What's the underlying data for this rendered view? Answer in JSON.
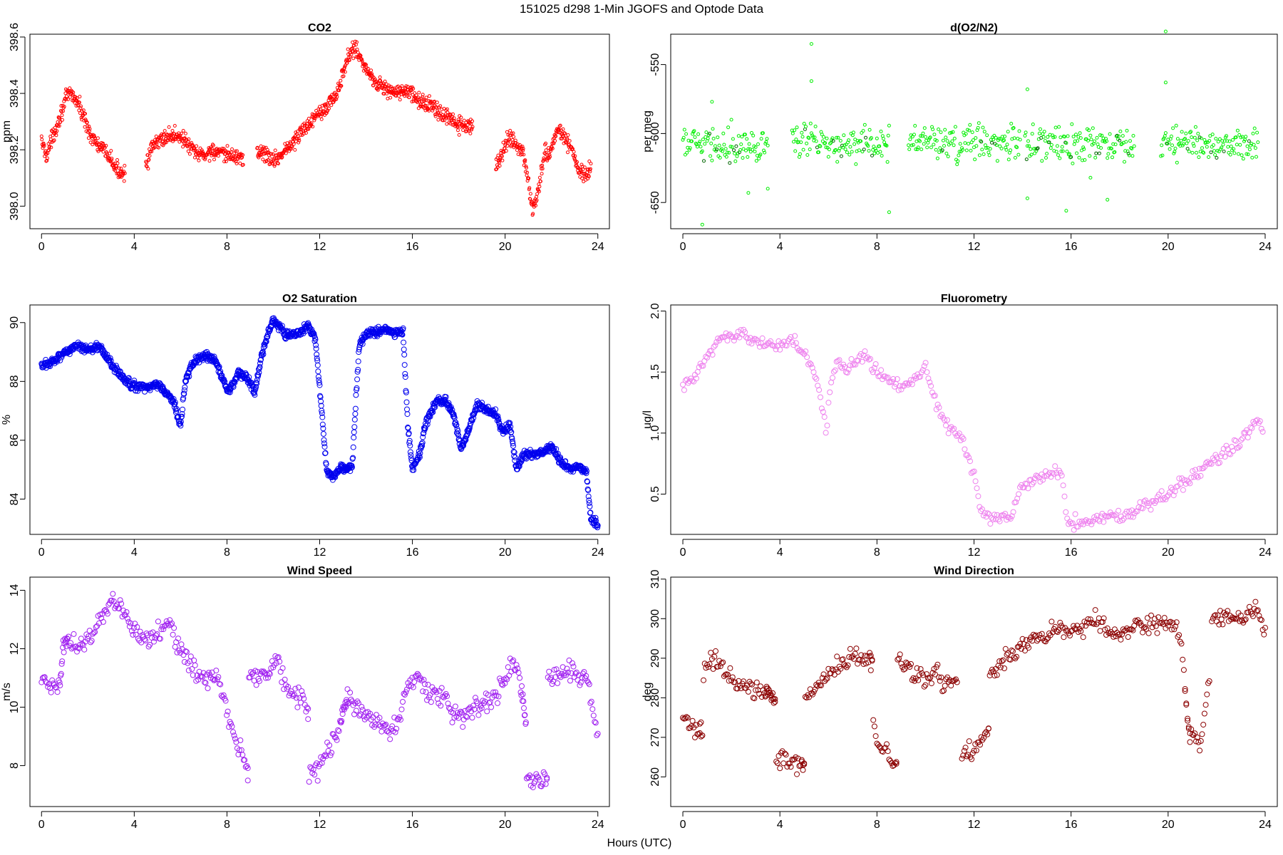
{
  "figure": {
    "title": "151025   d298   1-Min  JGOFS and Optode Data",
    "xlabel": "Hours (UTC)"
  },
  "chart_data": [
    {
      "id": "co2",
      "type": "scatter",
      "title": "CO2",
      "ylabel": "ppm",
      "color": "#ff0000",
      "xlim": [
        -0.5,
        24.5
      ],
      "ylim": [
        397.92,
        398.61
      ],
      "xticks": [
        0,
        4,
        8,
        12,
        16,
        20,
        24
      ],
      "yticks": [
        398.0,
        398.2,
        398.4,
        398.6
      ],
      "ytick_labels": [
        "398.0",
        "398.2",
        "398.4",
        "398.6"
      ],
      "marker_size": 2,
      "noise": 0.02,
      "density": 60,
      "segments": [
        0,
        3.6,
        4.5,
        8.7,
        9.3,
        18.6,
        19.6,
        23.7
      ],
      "x": [
        0,
        0.2,
        0.5,
        0.8,
        1.1,
        1.3,
        1.6,
        1.9,
        2.2,
        2.5,
        2.9,
        3.2,
        3.5,
        3.6,
        4.5,
        4.8,
        5.2,
        5.6,
        6.0,
        6.3,
        6.6,
        7.0,
        7.4,
        7.8,
        8.2,
        8.7,
        9.3,
        9.6,
        10.0,
        10.4,
        10.8,
        11.2,
        11.6,
        12.0,
        12.4,
        12.8,
        13.2,
        13.5,
        13.9,
        14.3,
        14.8,
        15.3,
        15.8,
        16.3,
        16.8,
        17.3,
        17.8,
        18.2,
        18.6,
        19.6,
        19.9,
        20.2,
        20.5,
        20.8,
        21.0,
        21.2,
        21.4,
        21.7,
        22.0,
        22.3,
        22.6,
        22.9,
        23.2,
        23.5,
        23.7
      ],
      "y": [
        398.23,
        398.18,
        398.25,
        398.32,
        398.39,
        398.4,
        398.36,
        398.3,
        398.24,
        398.21,
        398.18,
        398.13,
        398.12,
        398.13,
        398.15,
        398.21,
        398.24,
        398.25,
        398.25,
        398.22,
        398.19,
        398.18,
        398.2,
        398.18,
        398.18,
        398.17,
        398.19,
        398.19,
        398.16,
        398.19,
        398.22,
        398.26,
        398.3,
        398.34,
        398.36,
        398.41,
        398.52,
        398.57,
        398.5,
        398.45,
        398.42,
        398.4,
        398.41,
        398.37,
        398.36,
        398.32,
        398.3,
        398.28,
        398.28,
        398.15,
        398.19,
        398.25,
        398.22,
        398.18,
        398.08,
        397.98,
        398.05,
        398.18,
        398.2,
        398.28,
        398.24,
        398.2,
        398.12,
        398.1,
        398.14
      ]
    },
    {
      "id": "o2n2",
      "type": "scatter",
      "title": "d(O2/N2)",
      "ylabel": "per meg",
      "color": "#00ee00",
      "color2": "#006600",
      "xlim": [
        -0.5,
        24.5
      ],
      "ylim": [
        -669,
        -528
      ],
      "xticks": [
        0,
        4,
        8,
        12,
        16,
        20,
        24
      ],
      "yticks": [
        -550,
        -600,
        -650
      ],
      "ytick_labels": [
        "-550",
        "-600",
        "-650"
      ],
      "marker_size": 2,
      "noise": 9,
      "density": 30,
      "segments": [
        0,
        3.5,
        4.5,
        8.5,
        9.3,
        13.9,
        14.1,
        18.6,
        19.7,
        23.7
      ],
      "x": [
        0,
        23.7
      ],
      "y": [
        -607,
        -607
      ],
      "outliers": [
        [
          0.8,
          -666
        ],
        [
          1.2,
          -577
        ],
        [
          2.7,
          -643
        ],
        [
          3.5,
          -640
        ],
        [
          5.3,
          -535
        ],
        [
          5.3,
          -562
        ],
        [
          8.5,
          -657
        ],
        [
          14.2,
          -568
        ],
        [
          14.2,
          -647
        ],
        [
          15.8,
          -656
        ],
        [
          16.8,
          -632
        ],
        [
          17.5,
          -648
        ],
        [
          19.9,
          -526
        ],
        [
          19.9,
          -563
        ]
      ]
    },
    {
      "id": "o2sat",
      "type": "scatter",
      "title": "O2 Saturation",
      "ylabel": "%",
      "color": "#0000ee",
      "xlim": [
        -0.5,
        24.5
      ],
      "ylim": [
        82.8,
        90.6
      ],
      "xticks": [
        0,
        4,
        8,
        12,
        16,
        20,
        24
      ],
      "yticks": [
        84,
        86,
        88,
        90
      ],
      "ytick_labels": [
        "84",
        "86",
        "88",
        "90"
      ],
      "marker_size": 3.5,
      "noise": 0.1,
      "density": 60,
      "segments": [
        0,
        24
      ],
      "x": [
        0,
        0.5,
        1.0,
        1.5,
        2.0,
        2.5,
        3.0,
        3.4,
        3.8,
        4.2,
        4.6,
        5.0,
        5.4,
        5.7,
        6.0,
        6.2,
        6.5,
        7.0,
        7.5,
        8.0,
        8.2,
        8.5,
        8.9,
        9.2,
        9.5,
        9.8,
        10.0,
        10.2,
        10.5,
        11.0,
        11.5,
        11.8,
        12.0,
        12.3,
        12.6,
        12.9,
        13.1,
        13.4,
        13.7,
        14.0,
        14.5,
        14.9,
        15.3,
        15.6,
        15.8,
        16.0,
        16.3,
        16.6,
        17.0,
        17.4,
        17.8,
        18.1,
        18.4,
        18.8,
        19.2,
        19.6,
        19.9,
        20.2,
        20.5,
        20.8,
        21.2,
        21.6,
        22.0,
        22.4,
        22.8,
        23.2,
        23.5,
        23.7,
        24.0
      ],
      "y": [
        88.5,
        88.7,
        89.0,
        89.2,
        89.1,
        89.2,
        88.6,
        88.2,
        87.9,
        87.8,
        87.8,
        87.9,
        87.6,
        87.3,
        86.5,
        88.0,
        88.6,
        88.9,
        88.7,
        87.7,
        87.8,
        88.3,
        88.1,
        87.6,
        88.9,
        89.7,
        90.1,
        89.9,
        89.6,
        89.6,
        89.9,
        89.5,
        87.8,
        85.0,
        84.7,
        85.1,
        85.0,
        85.1,
        89.2,
        89.6,
        89.7,
        89.8,
        89.6,
        89.7,
        86.5,
        85.0,
        85.5,
        86.6,
        87.3,
        87.4,
        86.8,
        85.7,
        86.3,
        87.2,
        87.0,
        86.9,
        86.3,
        86.5,
        85.0,
        85.5,
        85.5,
        85.6,
        85.8,
        85.3,
        85.0,
        85.1,
        84.9,
        83.4,
        83.1
      ]
    },
    {
      "id": "fluoro",
      "type": "scatter",
      "title": "Fluorometry",
      "ylabel": "ug/l",
      "color": "#ee82ee",
      "xlim": [
        -0.5,
        24.5
      ],
      "ylim": [
        0.17,
        2.05
      ],
      "xticks": [
        0,
        4,
        8,
        12,
        16,
        20,
        24
      ],
      "yticks": [
        0.5,
        1.0,
        1.5,
        2.0
      ],
      "ytick_labels": [
        "0.5",
        "1.0",
        "1.5",
        "2.0"
      ],
      "marker_size": 3.5,
      "noise": 0.04,
      "density": 18,
      "segments": [
        0,
        23.9
      ],
      "x": [
        0,
        0.5,
        1.0,
        1.5,
        2.0,
        2.5,
        3.0,
        3.5,
        4.0,
        4.5,
        5.0,
        5.3,
        5.6,
        5.9,
        6.1,
        6.4,
        6.7,
        7.0,
        7.5,
        8.0,
        8.5,
        9.0,
        9.5,
        10.0,
        10.5,
        11.0,
        11.5,
        12.0,
        12.3,
        12.6,
        13.0,
        13.5,
        13.9,
        14.3,
        14.8,
        15.3,
        15.6,
        15.9,
        16.3,
        16.8,
        17.3,
        17.8,
        18.2,
        18.6,
        19.0,
        19.5,
        20.0,
        20.5,
        21.0,
        21.5,
        22.0,
        22.5,
        23.0,
        23.4,
        23.7,
        23.9
      ],
      "y": [
        1.38,
        1.45,
        1.62,
        1.8,
        1.78,
        1.82,
        1.75,
        1.72,
        1.74,
        1.76,
        1.65,
        1.55,
        1.35,
        1.0,
        1.4,
        1.6,
        1.5,
        1.6,
        1.65,
        1.5,
        1.45,
        1.38,
        1.45,
        1.55,
        1.2,
        1.05,
        0.95,
        0.65,
        0.35,
        0.3,
        0.3,
        0.28,
        0.55,
        0.6,
        0.63,
        0.68,
        0.65,
        0.25,
        0.28,
        0.3,
        0.32,
        0.3,
        0.32,
        0.38,
        0.42,
        0.45,
        0.5,
        0.58,
        0.64,
        0.72,
        0.8,
        0.85,
        0.95,
        1.05,
        1.12,
        1.0
      ]
    },
    {
      "id": "windspeed",
      "type": "scatter",
      "title": "Wind Speed",
      "ylabel": "m/s",
      "color": "#a020f0",
      "xlim": [
        -0.5,
        24.5
      ],
      "ylim": [
        6.6,
        14.45
      ],
      "xticks": [
        0,
        4,
        8,
        12,
        16,
        20,
        24
      ],
      "yticks": [
        8,
        10,
        12,
        14
      ],
      "ytick_labels": [
        "8",
        "10",
        "12",
        "14"
      ],
      "marker_size": 3.5,
      "noise": 0.25,
      "density": 22,
      "segments": [
        0,
        1.1,
        0.8,
        8.9,
        8.9,
        11.5,
        11.5,
        13.2,
        12.9,
        20.9,
        20.7,
        21.8,
        21.8,
        24
      ],
      "x": [
        0,
        0.4,
        0.8,
        1.0,
        1.5,
        2.0,
        2.5,
        3.0,
        3.5,
        4.0,
        4.5,
        5.0,
        5.5,
        6.0,
        6.5,
        7.0,
        7.5,
        7.8,
        8.1,
        8.5,
        8.9,
        8.9,
        9.3,
        9.8,
        10.2,
        10.7,
        11.2,
        11.5,
        11.5,
        11.9,
        12.3,
        12.7,
        13.2,
        12.9,
        13.4,
        14.0,
        14.6,
        15.0,
        15.4,
        15.8,
        16.3,
        16.8,
        17.3,
        17.8,
        18.3,
        18.8,
        19.3,
        19.7,
        20.2,
        20.5,
        20.9,
        20.7,
        21.1,
        21.5,
        21.8,
        21.8,
        22.3,
        22.7,
        23.2,
        23.6,
        24.0
      ],
      "y": [
        10.9,
        10.6,
        11.0,
        12.4,
        12.1,
        12.2,
        12.9,
        13.7,
        13.4,
        12.6,
        12.3,
        12.6,
        13.0,
        11.9,
        11.3,
        11.0,
        11.1,
        10.5,
        9.4,
        8.6,
        7.9,
        11.3,
        11.0,
        11.3,
        11.5,
        10.5,
        10.3,
        10.0,
        7.6,
        7.8,
        8.5,
        8.9,
        10.4,
        10.4,
        10.1,
        9.7,
        9.5,
        9.3,
        9.5,
        10.8,
        11.0,
        10.5,
        10.3,
        9.7,
        9.8,
        10.0,
        10.2,
        10.5,
        11.3,
        11.5,
        9.5,
        8.0,
        7.5,
        7.6,
        7.5,
        10.9,
        11.2,
        11.3,
        11.0,
        10.8,
        9.0
      ]
    },
    {
      "id": "winddir",
      "type": "scatter",
      "title": "Wind Direction",
      "ylabel": "deg",
      "color": "#8b0000",
      "xlim": [
        -0.5,
        24.5
      ],
      "ylim": [
        252.5,
        310.5
      ],
      "xticks": [
        0,
        4,
        8,
        12,
        16,
        20,
        24
      ],
      "yticks": [
        260,
        270,
        280,
        290,
        300,
        310
      ],
      "ytick_labels": [
        "260",
        "270",
        "280",
        "290",
        "300",
        "310"
      ],
      "marker_size": 3.5,
      "noise": 1.6,
      "density": 20,
      "segments": [
        0,
        0.8,
        0.7,
        3.8,
        3.4,
        5.0,
        4.9,
        7.8,
        7.7,
        8.8,
        8.8,
        11.3,
        11.5,
        12.6,
        12.6,
        20.9,
        20.7,
        21.7,
        21.8,
        24
      ],
      "x": [
        0,
        0.4,
        0.8,
        0.7,
        1.0,
        1.5,
        2.0,
        2.5,
        3.0,
        3.5,
        3.8,
        3.4,
        3.8,
        4.2,
        4.6,
        5.0,
        4.9,
        5.5,
        6.0,
        6.5,
        7.0,
        7.5,
        7.8,
        7.7,
        8.0,
        8.4,
        8.8,
        8.8,
        9.2,
        9.6,
        10.0,
        10.4,
        10.8,
        11.3,
        11.5,
        12.0,
        12.3,
        12.6,
        12.6,
        13.0,
        13.5,
        14.0,
        14.5,
        15.0,
        15.5,
        16.0,
        16.5,
        17.0,
        17.5,
        18.0,
        18.5,
        19.0,
        19.5,
        20.0,
        20.5,
        20.9,
        20.7,
        21.0,
        21.3,
        21.7,
        21.8,
        22.2,
        22.7,
        23.2,
        23.6,
        24.0
      ],
      "y": [
        274,
        273,
        271,
        284,
        289,
        289,
        285,
        283,
        282,
        281,
        280,
        266,
        264,
        265,
        263,
        263,
        279,
        283,
        285,
        289,
        291,
        289,
        289,
        282,
        268,
        266,
        262,
        290,
        289,
        285,
        285,
        287,
        283,
        285,
        266,
        267,
        270,
        273,
        286,
        288,
        291,
        293,
        295,
        296,
        298,
        296,
        298,
        300,
        297,
        296,
        297,
        299,
        298,
        299,
        296,
        269,
        279,
        271,
        267,
        286,
        301,
        299,
        300,
        300,
        303,
        296
      ]
    }
  ]
}
